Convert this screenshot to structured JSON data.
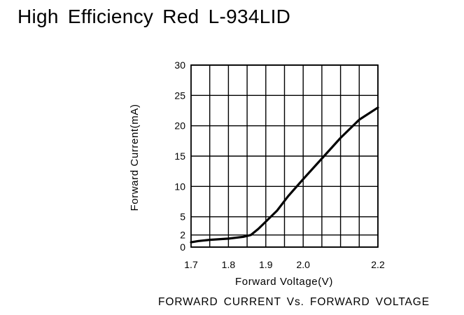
{
  "page": {
    "title": "High Efficiency Red L-934LID"
  },
  "chart_data": {
    "type": "line",
    "title": "High Efficiency Red L-934LID",
    "caption": "FORWARD CURRENT Vs. FORWARD VOLTAGE",
    "xlabel": "Forward Voltage(V)",
    "ylabel": "Forward Current(mA)",
    "xlim": [
      1.7,
      2.2
    ],
    "ylim": [
      0,
      30
    ],
    "x_ticks": [
      1.7,
      1.8,
      1.9,
      2.0,
      2.2
    ],
    "x_tick_labels": [
      "1.7",
      "1.8",
      "1.9",
      "2.0",
      "2.2"
    ],
    "x_gridlines": [
      1.75,
      1.8,
      1.85,
      1.9,
      1.95,
      2.0,
      2.05,
      2.1,
      2.15,
      2.2
    ],
    "y_ticks": [
      0,
      2,
      5,
      10,
      15,
      20,
      25,
      30
    ],
    "y_tick_labels": [
      "0",
      "2",
      "5",
      "10",
      "15",
      "20",
      "25",
      "30"
    ],
    "y_gridlines": [
      0,
      2,
      5,
      10,
      15,
      20,
      25,
      30
    ],
    "grid": true,
    "series": [
      {
        "x": [
          1.7,
          1.72,
          1.75,
          1.8,
          1.84,
          1.86,
          1.88,
          1.9,
          1.93,
          1.96,
          2.0,
          2.05,
          2.1,
          2.15,
          2.2
        ],
        "y": [
          0.8,
          1.0,
          1.2,
          1.4,
          1.7,
          2.0,
          3.0,
          4.2,
          6.0,
          8.4,
          11.2,
          14.6,
          18.0,
          21.0,
          23.0
        ]
      }
    ],
    "line_color": "#000000"
  }
}
